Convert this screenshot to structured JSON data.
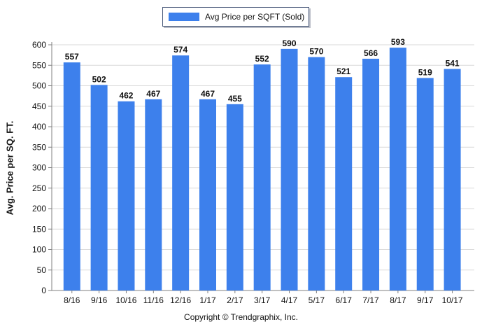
{
  "legend": {
    "label": "Avg Price per SQFT (Sold)"
  },
  "footer": {
    "copyright": "Copyright © Trendgraphix, Inc."
  },
  "colors": {
    "bar": "#3d80ec",
    "grid": "#d9d9d9",
    "axis": "#808080",
    "text": "#111111"
  },
  "chart_data": {
    "type": "bar",
    "title": "",
    "xlabel": "",
    "ylabel": "Avg. Price per SQ. FT.",
    "ylim": [
      0,
      600
    ],
    "yticks": [
      0,
      50,
      100,
      150,
      200,
      250,
      300,
      350,
      400,
      450,
      500,
      550,
      600
    ],
    "grid": true,
    "legend_position": "top-center",
    "categories": [
      "8/16",
      "9/16",
      "10/16",
      "11/16",
      "12/16",
      "1/17",
      "2/17",
      "3/17",
      "4/17",
      "5/17",
      "6/17",
      "7/17",
      "8/17",
      "9/17",
      "10/17"
    ],
    "series": [
      {
        "name": "Avg Price per SQFT (Sold)",
        "values": [
          557,
          502,
          462,
          467,
          574,
          467,
          455,
          552,
          590,
          570,
          521,
          566,
          593,
          519,
          541
        ]
      }
    ]
  }
}
